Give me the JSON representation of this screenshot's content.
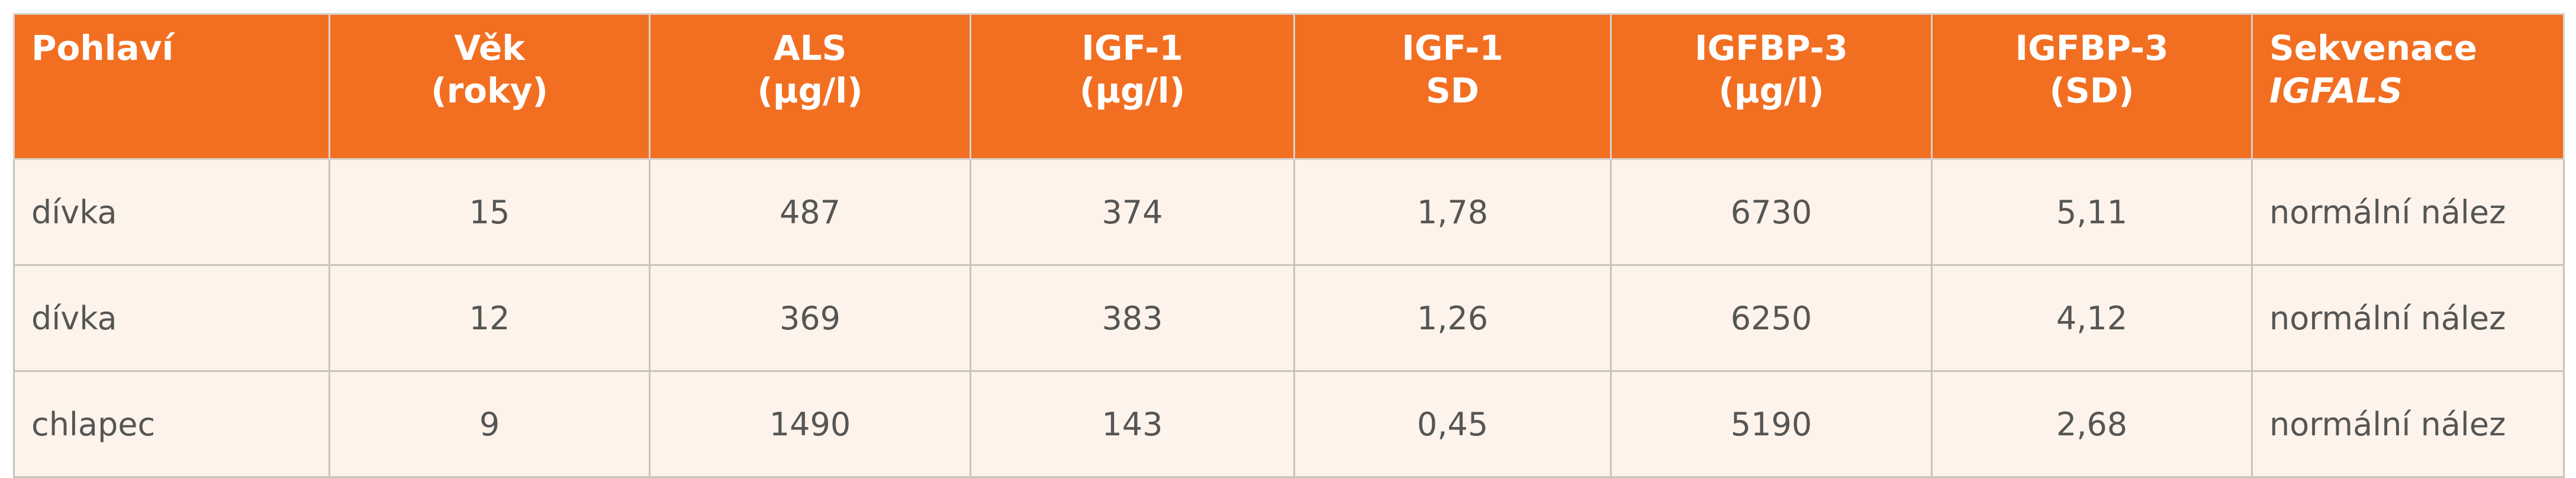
{
  "table": {
    "header": [
      [
        "Pohlaví"
      ],
      [
        "Věk",
        "(roky)"
      ],
      [
        "ALS",
        "(µg/l)"
      ],
      [
        "IGF-1",
        "(µg/l)"
      ],
      [
        "IGF-1",
        "SD"
      ],
      [
        "IGFBP-3",
        "(µg/l)"
      ],
      [
        "IGFBP-3",
        "(SD)"
      ],
      [
        "Sekvenace",
        "IGFALS"
      ]
    ],
    "rows": [
      [
        "dívka",
        "15",
        "487",
        "374",
        "1,78",
        "6730",
        "5,11",
        "normální nález"
      ],
      [
        "dívka",
        "12",
        "369",
        "383",
        "1,26",
        "6250",
        "4,12",
        "normální nález"
      ],
      [
        "chlapec",
        "9",
        "1490",
        "143",
        "0,45",
        "5190",
        "2,68",
        "normální nález"
      ]
    ]
  }
}
